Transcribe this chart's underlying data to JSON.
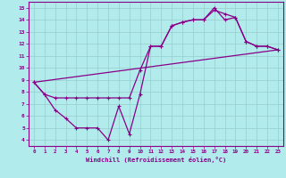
{
  "xlabel": "Windchill (Refroidissement éolien,°C)",
  "bg_color": "#b2ebeb",
  "line_color": "#880088",
  "grid_color": "#aadddd",
  "xlim": [
    -0.5,
    23.5
  ],
  "ylim": [
    3.5,
    15.5
  ],
  "xticks": [
    0,
    1,
    2,
    3,
    4,
    5,
    6,
    7,
    8,
    9,
    10,
    11,
    12,
    13,
    14,
    15,
    16,
    17,
    18,
    19,
    20,
    21,
    22,
    23
  ],
  "yticks": [
    4,
    5,
    6,
    7,
    8,
    9,
    10,
    11,
    12,
    13,
    14,
    15
  ],
  "line1_x": [
    0,
    1,
    2,
    3,
    4,
    5,
    6,
    7,
    8,
    9,
    10,
    11,
    12,
    13,
    14,
    15,
    16,
    17,
    18,
    19,
    20,
    21,
    22,
    23
  ],
  "line1_y": [
    8.8,
    7.8,
    6.5,
    5.8,
    5.0,
    5.0,
    5.0,
    4.0,
    6.8,
    4.5,
    7.8,
    11.8,
    11.8,
    13.5,
    13.8,
    14.0,
    14.0,
    15.0,
    14.0,
    14.2,
    12.2,
    11.8,
    11.8,
    11.5
  ],
  "line2_x": [
    0,
    1,
    2,
    3,
    4,
    5,
    6,
    7,
    8,
    9,
    10,
    11,
    12,
    13,
    14,
    15,
    16,
    17,
    18,
    19,
    20,
    21,
    22,
    23
  ],
  "line2_y": [
    8.8,
    7.8,
    7.5,
    7.5,
    7.5,
    7.5,
    7.5,
    7.5,
    7.5,
    7.5,
    9.8,
    11.8,
    11.8,
    13.5,
    13.8,
    14.0,
    14.0,
    14.8,
    14.5,
    14.2,
    12.2,
    11.8,
    11.8,
    11.5
  ],
  "line3_x": [
    0,
    23
  ],
  "line3_y": [
    8.8,
    11.5
  ]
}
